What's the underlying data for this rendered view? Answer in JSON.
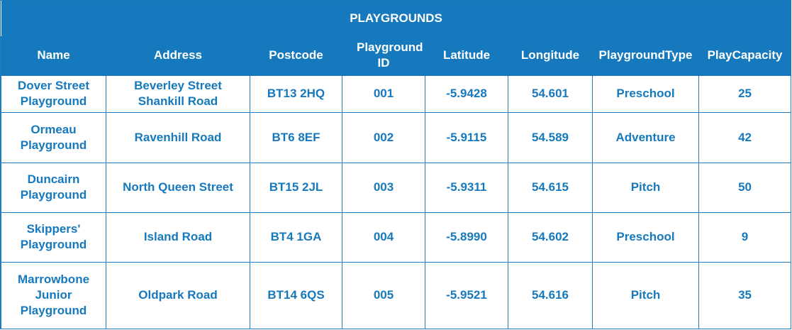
{
  "title": "PLAYGROUNDS",
  "columns": [
    "Name",
    "Address",
    "Postcode",
    "Playground ID",
    "Latitude",
    "Longitude",
    "PlaygroundType",
    "PlayCapacity"
  ],
  "rows": [
    [
      "Dover Street Playground",
      "Beverley Street Shankill Road",
      "BT13 2HQ",
      "001",
      "-5.9428",
      "54.601",
      "Preschool",
      "25"
    ],
    [
      "Ormeau Playground",
      "Ravenhill Road",
      "BT6 8EF",
      "002",
      "-5.9115",
      "54.589",
      "Adventure",
      "42"
    ],
    [
      "Duncairn Playground",
      "North Queen Street",
      "BT15 2JL",
      "003",
      "-5.9311",
      "54.615",
      "Pitch",
      "50"
    ],
    [
      "Skippers' Playground",
      "Island Road",
      "BT4 1GA",
      "004",
      "-5.8990",
      "54.602",
      "Preschool",
      "9"
    ],
    [
      "Marrowbone Junior Playground",
      "Oldpark Road",
      "BT14 6QS",
      "005",
      "-5.9521",
      "54.616",
      "Pitch",
      "35"
    ]
  ],
  "colors": {
    "header_bg": "#1679BD",
    "header_text": "#FFFFFF",
    "cell_text": "#1679BD",
    "border": "#1E7DC0"
  }
}
